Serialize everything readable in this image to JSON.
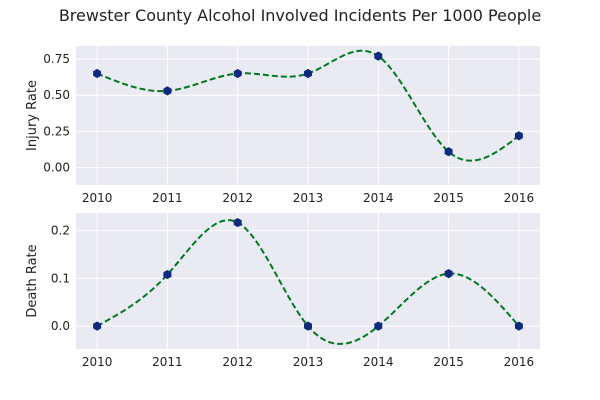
{
  "chart_data": [
    {
      "type": "line",
      "title": "Brewster County Alcohol Involved Incidents Per 1000 People",
      "xlabel": "",
      "ylabel": "Injury Rate",
      "x": [
        2010,
        2011,
        2012,
        2013,
        2014,
        2015,
        2016
      ],
      "series": [
        {
          "values": [
            0.65,
            0.53,
            0.65,
            0.65,
            0.77,
            0.11,
            0.22
          ]
        }
      ],
      "xlim": [
        2009.7,
        2016.3
      ],
      "ylim": [
        -0.12,
        0.84
      ],
      "yticks": [
        0.0,
        0.25,
        0.5,
        0.75
      ],
      "ytick_labels": [
        "0.00",
        "0.25",
        "0.50",
        "0.75"
      ],
      "xticks": [
        2010,
        2011,
        2012,
        2013,
        2014,
        2015,
        2016
      ],
      "grid": true,
      "style": {
        "curve": "smooth dashed",
        "line_color": "#007a1f",
        "marker": "hexagon",
        "marker_color": "#0d2a80",
        "background": "#eaeaf2"
      }
    },
    {
      "type": "line",
      "xlabel": "",
      "ylabel": "Death Rate",
      "x": [
        2010,
        2011,
        2012,
        2013,
        2014,
        2015,
        2016
      ],
      "series": [
        {
          "values": [
            0.0,
            0.108,
            0.217,
            0.0,
            0.0,
            0.11,
            0.0
          ]
        }
      ],
      "xlim": [
        2009.7,
        2016.3
      ],
      "ylim": [
        -0.048,
        0.237
      ],
      "yticks": [
        0.0,
        0.1,
        0.2
      ],
      "ytick_labels": [
        "0.0",
        "0.1",
        "0.2"
      ],
      "xticks": [
        2010,
        2011,
        2012,
        2013,
        2014,
        2015,
        2016
      ],
      "grid": true,
      "style": {
        "curve": "smooth dashed",
        "line_color": "#007a1f",
        "marker": "hexagon",
        "marker_color": "#0d2a80",
        "background": "#eaeaf2"
      }
    }
  ]
}
